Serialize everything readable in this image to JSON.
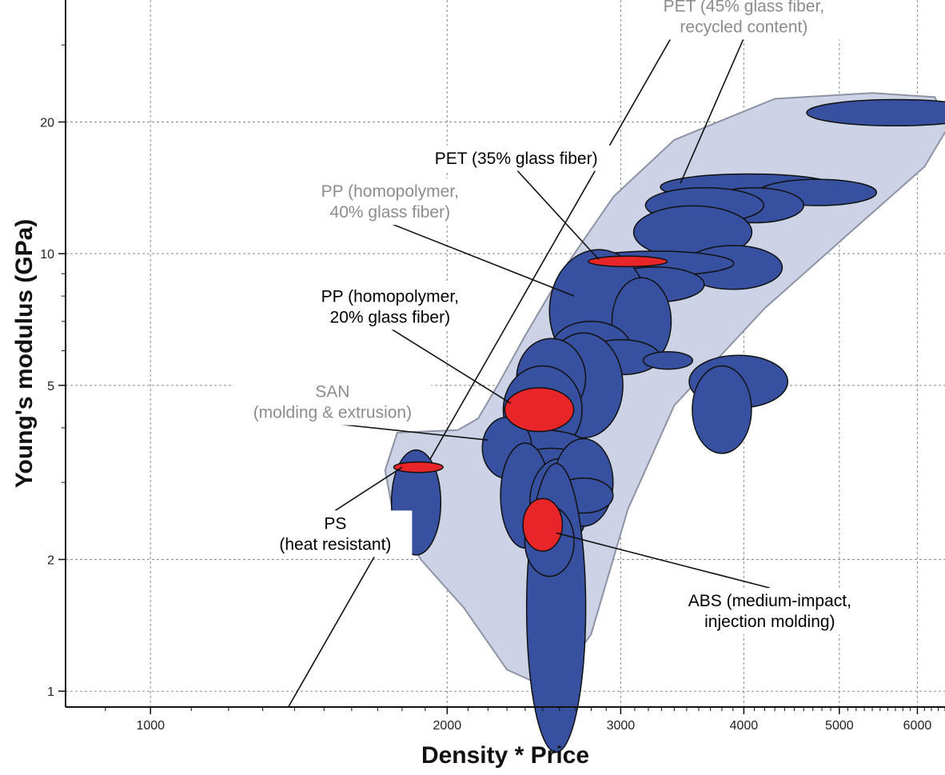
{
  "chart_data": {
    "type": "scatter",
    "title": "",
    "xlabel": "Density * Price",
    "ylabel": "Young's modulus (GPa)",
    "x_scale": "log",
    "y_scale": "log",
    "xlim": [
      820,
      6400
    ],
    "ylim": [
      0.92,
      38
    ],
    "grid": true,
    "x_ticks": [
      {
        "value": 1000,
        "label": "1000"
      },
      {
        "value": 2000,
        "label": "2000"
      },
      {
        "value": 3000,
        "label": "3000"
      },
      {
        "value": 4000,
        "label": "4000"
      },
      {
        "value": 5000,
        "label": "5000"
      },
      {
        "value": 6000,
        "label": "6000"
      }
    ],
    "y_ticks": [
      {
        "value": 1,
        "label": "1"
      },
      {
        "value": 2,
        "label": "2"
      },
      {
        "value": 5,
        "label": "5"
      },
      {
        "value": 10,
        "label": "10"
      },
      {
        "value": 20,
        "label": "20"
      }
    ],
    "colors": {
      "envelope_fill": "#cdd3e6",
      "envelope_stroke": "#8d93a3",
      "bubble_default": "#3750a0",
      "bubble_highlight": "#e8262a",
      "annot_black": "#000000",
      "annot_gray": "#8c8c8c"
    },
    "guideline": {
      "x1": 1380,
      "y1": 0.92,
      "x2": 3550,
      "y2": 38
    },
    "envelope": [
      [
        1780,
        3.9
      ],
      [
        2050,
        3.95
      ],
      [
        2150,
        4.2
      ],
      [
        2250,
        5.0
      ],
      [
        2400,
        6.5
      ],
      [
        2650,
        9.5
      ],
      [
        2950,
        13.5
      ],
      [
        3400,
        18.2
      ],
      [
        4300,
        22.6
      ],
      [
        5400,
        23.3
      ],
      [
        6250,
        22.8
      ],
      [
        6450,
        19.5
      ],
      [
        6100,
        15.8
      ],
      [
        5200,
        11.5
      ],
      [
        4200,
        7.5
      ],
      [
        3400,
        4.5
      ],
      [
        3050,
        2.6
      ],
      [
        2800,
        1.35
      ],
      [
        2600,
        1.07
      ],
      [
        2450,
        1.05
      ],
      [
        2300,
        1.12
      ],
      [
        2080,
        1.55
      ],
      [
        1880,
        2.0
      ],
      [
        1760,
        2.6
      ],
      [
        1730,
        3.2
      ]
    ],
    "materials": [
      {
        "x": 5700,
        "y": 21.0,
        "rx": 0.09,
        "ry": 0.03,
        "highlight": false
      },
      {
        "x": 4050,
        "y": 14.2,
        "rx": 0.09,
        "ry": 0.03,
        "highlight": false
      },
      {
        "x": 4750,
        "y": 13.8,
        "rx": 0.06,
        "ry": 0.03,
        "highlight": false
      },
      {
        "x": 4100,
        "y": 12.9,
        "rx": 0.05,
        "ry": 0.04,
        "highlight": false
      },
      {
        "x": 3650,
        "y": 12.9,
        "rx": 0.06,
        "ry": 0.04,
        "highlight": false
      },
      {
        "x": 3550,
        "y": 11.2,
        "rx": 0.06,
        "ry": 0.06,
        "highlight": false
      },
      {
        "x": 3900,
        "y": 9.3,
        "rx": 0.05,
        "ry": 0.05,
        "highlight": false
      },
      {
        "x": 3250,
        "y": 9.5,
        "rx": 0.08,
        "ry": 0.028,
        "highlight": false
      },
      {
        "x": 3250,
        "y": 8.5,
        "rx": 0.05,
        "ry": 0.04,
        "highlight": false
      },
      {
        "x": 2850,
        "y": 7.4,
        "rx": 0.05,
        "ry": 0.14,
        "highlight": false
      },
      {
        "x": 3150,
        "y": 7.0,
        "rx": 0.03,
        "ry": 0.1,
        "highlight": false
      },
      {
        "x": 2800,
        "y": 6.1,
        "rx": 0.04,
        "ry": 0.06,
        "highlight": false
      },
      {
        "x": 3000,
        "y": 5.8,
        "rx": 0.04,
        "ry": 0.04,
        "highlight": false
      },
      {
        "x": 3350,
        "y": 5.7,
        "rx": 0.025,
        "ry": 0.02,
        "highlight": false
      },
      {
        "x": 2750,
        "y": 5.0,
        "rx": 0.04,
        "ry": 0.12,
        "highlight": false
      },
      {
        "x": 3950,
        "y": 5.1,
        "rx": 0.05,
        "ry": 0.06,
        "highlight": false
      },
      {
        "x": 3800,
        "y": 4.4,
        "rx": 0.03,
        "ry": 0.1,
        "highlight": false
      },
      {
        "x": 2550,
        "y": 5.2,
        "rx": 0.035,
        "ry": 0.09,
        "highlight": false
      },
      {
        "x": 2500,
        "y": 4.4,
        "rx": 0.04,
        "ry": 0.1,
        "highlight": false
      },
      {
        "x": 2450,
        "y": 3.7,
        "rx": 0.05,
        "ry": 0.03,
        "highlight": false
      },
      {
        "x": 2300,
        "y": 3.6,
        "rx": 0.025,
        "ry": 0.07,
        "highlight": false
      },
      {
        "x": 2550,
        "y": 3.2,
        "rx": 0.04,
        "ry": 0.05,
        "highlight": false
      },
      {
        "x": 2400,
        "y": 2.8,
        "rx": 0.025,
        "ry": 0.12,
        "highlight": false
      },
      {
        "x": 2600,
        "y": 2.7,
        "rx": 0.03,
        "ry": 0.1,
        "highlight": false
      },
      {
        "x": 2750,
        "y": 3.0,
        "rx": 0.03,
        "ry": 0.1,
        "highlight": false
      },
      {
        "x": 2750,
        "y": 2.8,
        "rx": 0.03,
        "ry": 0.04,
        "highlight": false
      },
      {
        "x": 1860,
        "y": 2.7,
        "rx": 0.025,
        "ry": 0.12,
        "highlight": false
      },
      {
        "x": 2580,
        "y": 1.55,
        "rx": 0.03,
        "ry": 0.33,
        "highlight": false
      },
      {
        "x": 2540,
        "y": 2.2,
        "rx": 0.025,
        "ry": 0.08,
        "highlight": false
      },
      {
        "x": 3050,
        "y": 9.6,
        "rx": 0.04,
        "ry": 0.012,
        "highlight": true,
        "label": "PET (35% glass fiber)"
      },
      {
        "x": 2480,
        "y": 4.4,
        "rx": 0.035,
        "ry": 0.05,
        "highlight": true,
        "label": "PP (homopolymer, 20% glass fiber)"
      },
      {
        "x": 2500,
        "y": 2.4,
        "rx": 0.02,
        "ry": 0.06,
        "highlight": true,
        "label": "ABS (medium-impact, injection molding)"
      },
      {
        "x": 1870,
        "y": 3.25,
        "rx": 0.025,
        "ry": 0.012,
        "highlight": true,
        "label": "PS (heat resistant)"
      }
    ],
    "annotations": [
      {
        "lines": [
          "PET (45% glass fiber,",
          "recycled content)"
        ],
        "color": "#8c8c8c",
        "tx": 4000,
        "ty": 35,
        "target": [
          3450,
          14.5
        ]
      },
      {
        "lines": [
          "PET (35% glass fiber)"
        ],
        "color": "#000000",
        "tx": 2350,
        "ty": 16.6,
        "target": [
          2850,
          9.7
        ]
      },
      {
        "lines": [
          "PP (homopolymer,",
          "40% glass fiber)"
        ],
        "color": "#8c8c8c",
        "tx": 1750,
        "ty": 13.2,
        "target": [
          2690,
          8.0
        ]
      },
      {
        "lines": [
          "PP (homopolymer,",
          "20% glass fiber)"
        ],
        "color": "#000000",
        "tx": 1750,
        "ty": 7.6,
        "target": [
          2320,
          4.55
        ]
      },
      {
        "lines": [
          "SAN",
          "(molding & extrusion)"
        ],
        "color": "#8c8c8c",
        "tx": 1530,
        "ty": 4.6,
        "target": [
          2200,
          3.75
        ]
      },
      {
        "lines": [
          "PS",
          "(heat resistant)"
        ],
        "color": "#000000",
        "tx": 1540,
        "ty": 2.3,
        "target": [
          1800,
          3.25
        ]
      },
      {
        "lines": [
          "ABS (medium-impact,",
          "injection molding)"
        ],
        "color": "#000000",
        "tx": 4250,
        "ty": 1.53,
        "target": [
          2580,
          2.3
        ]
      }
    ]
  }
}
